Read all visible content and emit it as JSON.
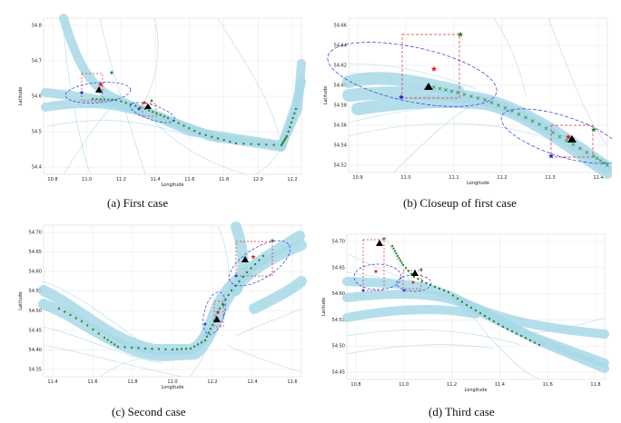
{
  "figure": {
    "panels": [
      {
        "id": "a",
        "caption": "(a) First case",
        "xlabel": "Longitude",
        "ylabel": "Latitude",
        "xticks": [
          "10.8",
          "11.0",
          "11.2",
          "11.4",
          "11.6",
          "11.8",
          "12.0",
          "12.2"
        ],
        "yticks": [
          "54.8",
          "54.7",
          "54.6",
          "54.5",
          "54.4"
        ]
      },
      {
        "id": "b",
        "caption": "(b) Closeup of first case",
        "xlabel": "Longitude",
        "ylabel": "Latitude",
        "xticks": [
          "10.9",
          "11.0",
          "11.1",
          "11.2",
          "11.3",
          "11.4"
        ],
        "yticks": [
          "54.66",
          "54.64",
          "54.62",
          "54.60",
          "54.58",
          "54.56",
          "54.54",
          "54.52"
        ]
      },
      {
        "id": "c",
        "caption": "(c) Second case",
        "xlabel": "Longitude",
        "ylabel": "Latitude",
        "xticks": [
          "11.4",
          "11.6",
          "11.8",
          "12.0",
          "12.2",
          "12.4",
          "12.6"
        ],
        "yticks": [
          "54.70",
          "54.65",
          "54.60",
          "54.55",
          "54.50",
          "54.45",
          "54.40",
          "54.35"
        ]
      },
      {
        "id": "d",
        "caption": "(d) Third case",
        "xlabel": "Longitude",
        "ylabel": "Latitude",
        "xticks": [
          "10.8",
          "11.0",
          "11.2",
          "11.4",
          "11.6",
          "11.8"
        ],
        "yticks": [
          "54.70",
          "54.65",
          "54.60",
          "54.55",
          "54.50",
          "54.45"
        ]
      }
    ],
    "colors": {
      "traffic": "#a8d8e8",
      "trajectory": "#2e8b2e",
      "ellipse": "#3333cc",
      "box": "#e03030",
      "star_red": "#e02020",
      "star_green": "#2a7a2a",
      "star_blue": "#2222cc",
      "triangle": "#000000",
      "grid": "#e6e6e6"
    }
  }
}
